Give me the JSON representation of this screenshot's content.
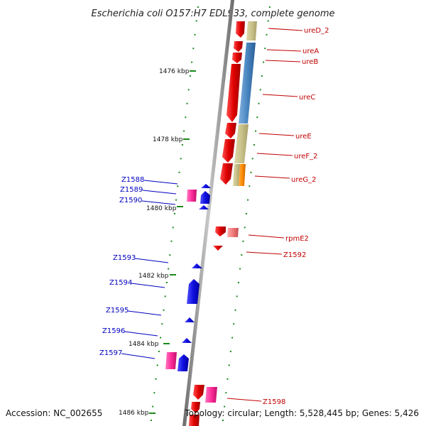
{
  "title": "Escherichia coli O157:H7 EDL933, complete genome",
  "footer": {
    "accession": "Accession: NC_002655",
    "topology": "Topology: circular; Length: 5,528,445 bp; Genes: 5,426"
  },
  "scale_ticks": [
    "1476 kbp",
    "1478 kbp",
    "1480 kbp",
    "1482 kbp",
    "1484 kbp",
    "1486 kbp"
  ],
  "genes_right": [
    "ureD_2",
    "ureA",
    "ureB",
    "ureC",
    "ureE",
    "ureF_2",
    "ureG_2",
    "rpmE2",
    "Z1592",
    "Z1598"
  ],
  "genes_left": [
    "Z1588",
    "Z1589",
    "Z1590",
    "Z1593",
    "Z1594",
    "Z1595",
    "Z1596",
    "Z1597"
  ],
  "colors": {
    "forward_cds": "#e00000",
    "reverse_cds": "#1010e0",
    "rna": "#ff2d9a",
    "khaki_band": "#c9c28a",
    "blue_band": "#4a86c0",
    "orange_band": "#ff8c00",
    "tick_green": "#1a8a1a",
    "backbone": "#888888"
  }
}
